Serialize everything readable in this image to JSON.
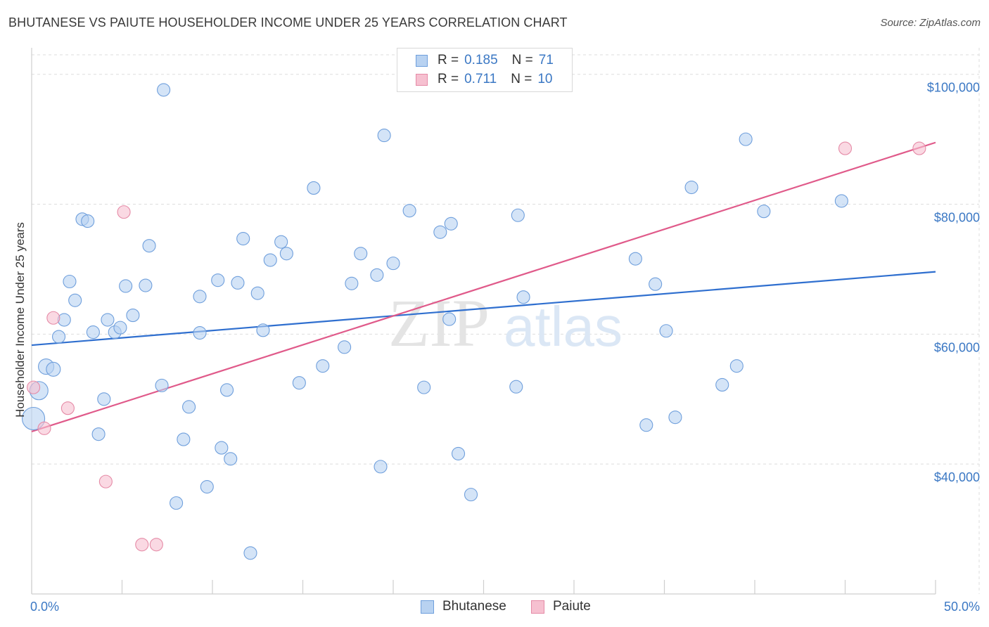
{
  "title": "BHUTANESE VS PAIUTE HOUSEHOLDER INCOME UNDER 25 YEARS CORRELATION CHART",
  "source": "Source: ZipAtlas.com",
  "watermark": {
    "part1": "ZIP",
    "part2": "atlas"
  },
  "colors": {
    "blue_fill": "#b8d2f1",
    "blue_stroke": "#6f9fdc",
    "blue_line": "#2f6fcf",
    "pink_fill": "#f6c0d0",
    "pink_stroke": "#e58aa6",
    "pink_line": "#e05a8a",
    "tick_text": "#3b78c4",
    "grid": "#dddddd"
  },
  "legend": {
    "rows": [
      {
        "r_label": "R =",
        "r_value": "0.185",
        "n_label": "N =",
        "n_value": "71"
      },
      {
        "r_label": "R =",
        "r_value": "0.711",
        "n_label": "N =",
        "n_value": "10"
      }
    ]
  },
  "bottom_legend": {
    "series1": "Bhutanese",
    "series2": "Paiute"
  },
  "chart_data": {
    "type": "scatter",
    "xlabel": "",
    "ylabel": "Householder Income Under 25 years",
    "xlim": [
      0,
      50
    ],
    "ylim": [
      20000,
      103000
    ],
    "x_tick_labels": [
      "0.0%",
      "50.0%"
    ],
    "y_ticks": [
      40000,
      60000,
      80000,
      100000
    ],
    "y_tick_labels": [
      "$40,000",
      "$60,000",
      "$80,000",
      "$100,000"
    ],
    "grid": true,
    "legend_position": "top-center",
    "series": [
      {
        "name": "Bhutanese",
        "trend": {
          "x": [
            0,
            50
          ],
          "y": [
            58300,
            69600
          ]
        },
        "points": [
          [
            0.1,
            47000,
            16
          ],
          [
            0.4,
            51300,
            13
          ],
          [
            0.8,
            55000,
            11
          ],
          [
            1.2,
            54600,
            10
          ],
          [
            1.5,
            59600,
            9
          ],
          [
            1.8,
            62200,
            9
          ],
          [
            2.1,
            68100,
            9
          ],
          [
            2.4,
            65200,
            9
          ],
          [
            2.8,
            77700,
            9
          ],
          [
            3.1,
            77400,
            9
          ],
          [
            3.4,
            60300,
            9
          ],
          [
            3.7,
            44600,
            9
          ],
          [
            4.0,
            50000,
            9
          ],
          [
            4.2,
            62200,
            9
          ],
          [
            4.6,
            60300,
            9
          ],
          [
            4.9,
            61000,
            9
          ],
          [
            5.2,
            67400,
            9
          ],
          [
            5.6,
            62900,
            9
          ],
          [
            6.3,
            67500,
            9
          ],
          [
            6.5,
            73600,
            9
          ],
          [
            7.2,
            52100,
            9
          ],
          [
            7.3,
            97600,
            9
          ],
          [
            8.0,
            34000,
            9
          ],
          [
            8.4,
            43800,
            9
          ],
          [
            8.7,
            48800,
            9
          ],
          [
            9.3,
            60200,
            9
          ],
          [
            9.3,
            65800,
            9
          ],
          [
            9.7,
            36500,
            9
          ],
          [
            10.3,
            68300,
            9
          ],
          [
            10.5,
            42500,
            9
          ],
          [
            10.8,
            51400,
            9
          ],
          [
            11.0,
            40800,
            9
          ],
          [
            11.4,
            67900,
            9
          ],
          [
            11.7,
            74700,
            9
          ],
          [
            12.1,
            26300,
            9
          ],
          [
            12.5,
            66300,
            9
          ],
          [
            12.8,
            60600,
            9
          ],
          [
            13.2,
            71400,
            9
          ],
          [
            13.8,
            74200,
            9
          ],
          [
            14.1,
            72400,
            9
          ],
          [
            14.8,
            52500,
            9
          ],
          [
            15.6,
            82500,
            9
          ],
          [
            16.1,
            55100,
            9
          ],
          [
            17.3,
            58000,
            9
          ],
          [
            17.7,
            67800,
            9
          ],
          [
            18.2,
            72400,
            9
          ],
          [
            19.1,
            69100,
            9
          ],
          [
            19.3,
            39600,
            9
          ],
          [
            19.5,
            90600,
            9
          ],
          [
            20.0,
            70900,
            9
          ],
          [
            20.9,
            79000,
            9
          ],
          [
            21.7,
            51800,
            9
          ],
          [
            22.6,
            75700,
            9
          ],
          [
            23.1,
            62300,
            9
          ],
          [
            23.2,
            77000,
            9
          ],
          [
            23.6,
            41600,
            9
          ],
          [
            24.3,
            35300,
            9
          ],
          [
            26.8,
            51900,
            9
          ],
          [
            26.9,
            78300,
            9
          ],
          [
            27.2,
            65700,
            9
          ],
          [
            33.4,
            71600,
            9
          ],
          [
            34.0,
            46000,
            9
          ],
          [
            34.5,
            67700,
            9
          ],
          [
            35.1,
            60500,
            9
          ],
          [
            35.6,
            47200,
            9
          ],
          [
            36.5,
            82600,
            9
          ],
          [
            38.2,
            52200,
            9
          ],
          [
            39.0,
            55100,
            9
          ],
          [
            39.5,
            90000,
            9
          ],
          [
            40.5,
            78900,
            9
          ],
          [
            44.8,
            80500,
            9
          ]
        ]
      },
      {
        "name": "Paiute",
        "trend": {
          "x": [
            0,
            50
          ],
          "y": [
            45000,
            89500
          ]
        },
        "points": [
          [
            0.1,
            51800,
            9
          ],
          [
            0.7,
            45500,
            9
          ],
          [
            1.2,
            62500,
            9
          ],
          [
            2.0,
            48600,
            9
          ],
          [
            4.1,
            37300,
            9
          ],
          [
            5.1,
            78800,
            9
          ],
          [
            6.1,
            27600,
            9
          ],
          [
            6.9,
            27600,
            9
          ],
          [
            45.0,
            88600,
            9
          ],
          [
            49.1,
            88600,
            9
          ]
        ]
      }
    ]
  }
}
